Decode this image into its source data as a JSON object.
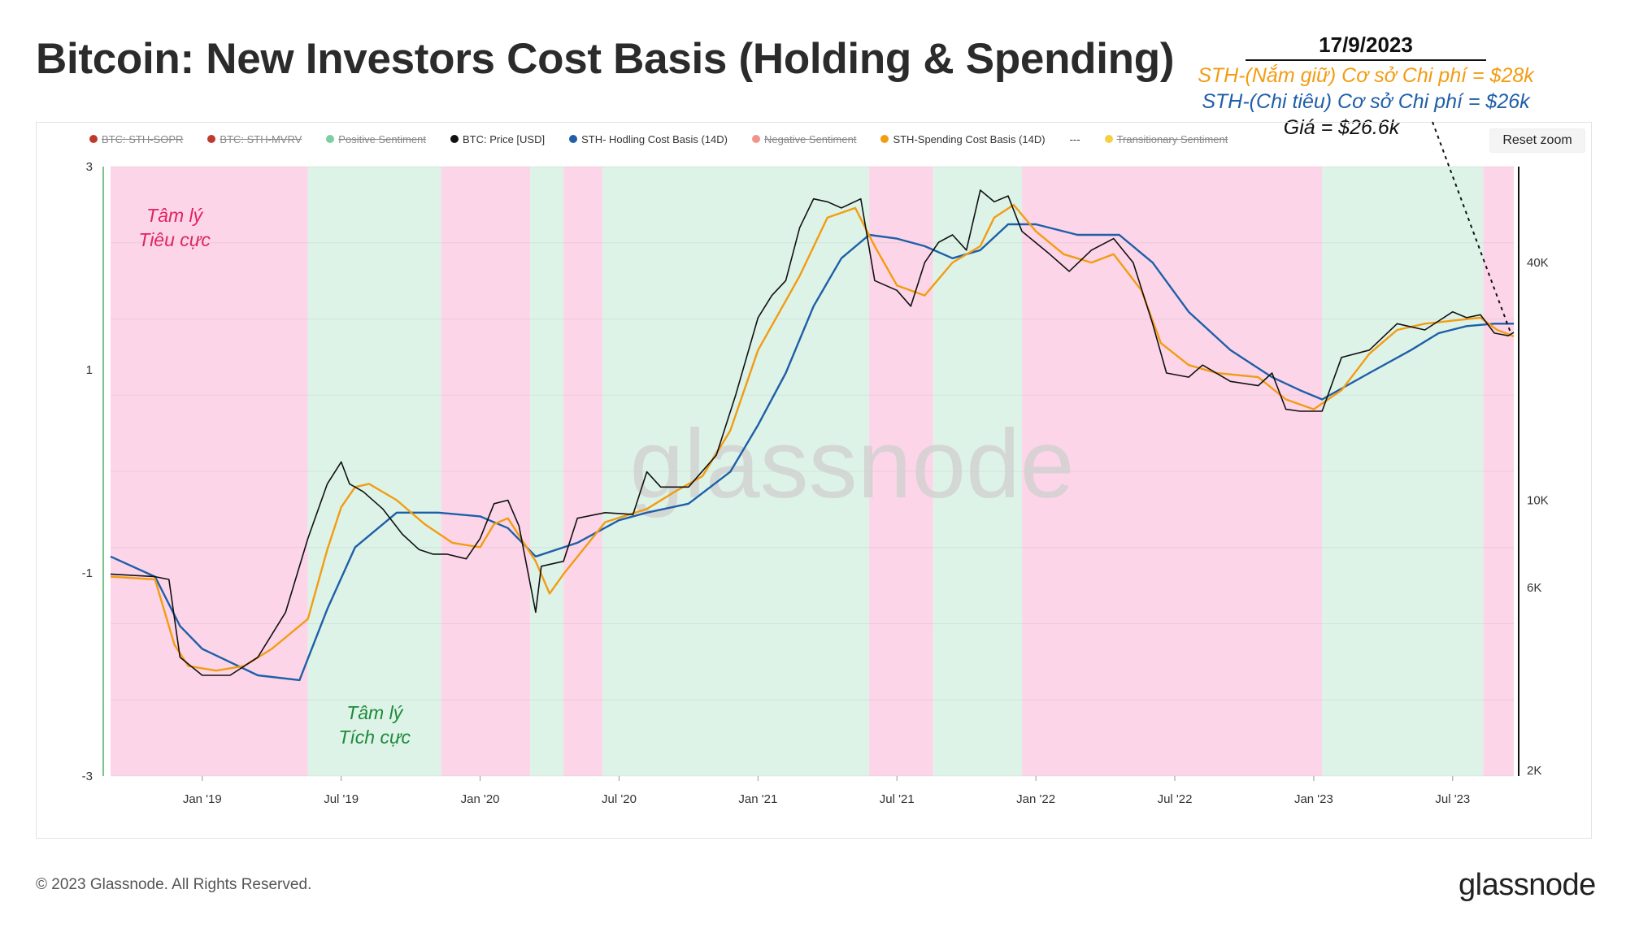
{
  "header": {
    "title": "Bitcoin: New Investors Cost Basis (Holding & Spending)"
  },
  "annotation": {
    "date": "17/9/2023",
    "holding": "STH-(Nắm giữ) Cơ sở Chi phí = $28k",
    "spending": "STH-(Chi tiêu) Cơ sở Chi phí = $26k",
    "price": "Giá = $26.6k"
  },
  "legend": [
    {
      "label": "BTC: STH-SOPR",
      "color": "#c0392b",
      "enabled": false
    },
    {
      "label": "BTC: STH-MVRV",
      "color": "#c0392b",
      "enabled": false
    },
    {
      "label": "Positive Sentiment",
      "color": "#7dcea0",
      "enabled": false
    },
    {
      "label": "BTC: Price [USD]",
      "color": "#111111",
      "enabled": true
    },
    {
      "label": "STH- Hodling Cost Basis (14D)",
      "color": "#1f5fa8",
      "enabled": true
    },
    {
      "label": "Negative Sentiment",
      "color": "#f1948a",
      "enabled": false
    },
    {
      "label": "STH-Spending Cost Basis (14D)",
      "color": "#f39c12",
      "enabled": true
    },
    {
      "label": "---",
      "color": "",
      "enabled": true
    },
    {
      "label": "Transitionary Sentiment",
      "color": "#f4d03f",
      "enabled": false
    }
  ],
  "controls": {
    "reset_zoom": "Reset zoom"
  },
  "footer": {
    "copyright": "© 2023 Glassnode. All Rights Reserved.",
    "brand": "glassnode"
  },
  "watermark": "glassnode",
  "colors": {
    "price": "#111111",
    "holding": "#1f5fa8",
    "spending": "#f39c12",
    "negative_band": "#fcd6e8",
    "positive_band": "#ddf3e8",
    "left_axis_line": "#7cc48e"
  },
  "chart_data": {
    "type": "line",
    "title": "Bitcoin: New Investors Cost Basis (Holding & Spending)",
    "x_ticks": [
      "Jan '19",
      "Jul '19",
      "Jan '20",
      "Jul '20",
      "Jan '21",
      "Jul '21",
      "Jan '22",
      "Jul '22",
      "Jan '23",
      "Jul '23"
    ],
    "x_range": [
      "2018-09",
      "2023-09"
    ],
    "y_left_ticks": [
      "3",
      "1",
      "-1",
      "-3"
    ],
    "y_left_range": [
      -3,
      3
    ],
    "y_right_ticks": [
      "40K",
      "10K",
      "6K",
      "2K"
    ],
    "y_right_scale": "log",
    "y_right_range_usd": [
      2000,
      70000
    ],
    "sentiment_bands": [
      {
        "from": 2018.67,
        "to": 2019.38,
        "sentiment": "negative"
      },
      {
        "from": 2019.38,
        "to": 2019.86,
        "sentiment": "positive"
      },
      {
        "from": 2019.86,
        "to": 2020.18,
        "sentiment": "negative"
      },
      {
        "from": 2020.18,
        "to": 2020.3,
        "sentiment": "positive"
      },
      {
        "from": 2020.3,
        "to": 2020.44,
        "sentiment": "negative"
      },
      {
        "from": 2020.44,
        "to": 2021.4,
        "sentiment": "positive"
      },
      {
        "from": 2021.4,
        "to": 2021.63,
        "sentiment": "negative"
      },
      {
        "from": 2021.63,
        "to": 2021.95,
        "sentiment": "positive"
      },
      {
        "from": 2021.95,
        "to": 2023.03,
        "sentiment": "negative"
      },
      {
        "from": 2023.03,
        "to": 2023.61,
        "sentiment": "positive"
      },
      {
        "from": 2023.61,
        "to": 2023.72,
        "sentiment": "negative"
      }
    ],
    "band_labels": [
      {
        "text": "Tâm lý\nTiêu cực",
        "sentiment": "negative",
        "at": 2018.9
      },
      {
        "text": "Tâm lý\nTích cực",
        "sentiment": "positive",
        "at": 2019.62
      }
    ],
    "series": [
      {
        "name": "BTC: Price [USD]",
        "color": "#111111",
        "x": [
          2018.67,
          2018.83,
          2018.88,
          2018.92,
          2019.0,
          2019.1,
          2019.2,
          2019.3,
          2019.38,
          2019.45,
          2019.5,
          2019.53,
          2019.58,
          2019.65,
          2019.72,
          2019.78,
          2019.83,
          2019.88,
          2019.95,
          2020.0,
          2020.05,
          2020.1,
          2020.14,
          2020.2,
          2020.22,
          2020.3,
          2020.35,
          2020.45,
          2020.55,
          2020.6,
          2020.65,
          2020.75,
          2020.85,
          2020.92,
          2021.0,
          2021.05,
          2021.1,
          2021.15,
          2021.2,
          2021.25,
          2021.3,
          2021.37,
          2021.42,
          2021.5,
          2021.55,
          2021.6,
          2021.65,
          2021.7,
          2021.75,
          2021.8,
          2021.85,
          2021.9,
          2021.95,
          2022.05,
          2022.12,
          2022.2,
          2022.28,
          2022.35,
          2022.42,
          2022.47,
          2022.55,
          2022.6,
          2022.7,
          2022.8,
          2022.85,
          2022.9,
          2022.95,
          2023.03,
          2023.1,
          2023.2,
          2023.3,
          2023.4,
          2023.5,
          2023.55,
          2023.6,
          2023.65,
          2023.7,
          2023.72
        ],
        "y": [
          6500,
          6400,
          6300,
          4000,
          3600,
          3600,
          4000,
          5200,
          8000,
          11000,
          12500,
          11000,
          10500,
          9500,
          8200,
          7500,
          7300,
          7300,
          7100,
          8000,
          9800,
          10000,
          8600,
          5200,
          6800,
          7000,
          9000,
          9300,
          9200,
          11800,
          10800,
          10800,
          13000,
          18500,
          29000,
          33000,
          36000,
          49000,
          58000,
          57000,
          55000,
          58000,
          36000,
          34000,
          31000,
          40000,
          45000,
          47000,
          43000,
          61000,
          57000,
          59000,
          48000,
          42000,
          38000,
          43000,
          46000,
          40000,
          28000,
          21000,
          20500,
          22000,
          20000,
          19500,
          21000,
          17000,
          16800,
          16800,
          23000,
          24000,
          28000,
          27000,
          30000,
          29000,
          29500,
          26500,
          26100,
          26600
        ]
      },
      {
        "name": "STH- Hodling Cost Basis (14D)",
        "color": "#1f5fa8",
        "x": [
          2018.67,
          2018.83,
          2018.92,
          2019.0,
          2019.2,
          2019.35,
          2019.45,
          2019.55,
          2019.7,
          2019.85,
          2020.0,
          2020.1,
          2020.2,
          2020.35,
          2020.5,
          2020.6,
          2020.75,
          2020.9,
          2021.0,
          2021.1,
          2021.2,
          2021.3,
          2021.4,
          2021.5,
          2021.6,
          2021.7,
          2021.8,
          2021.9,
          2022.0,
          2022.15,
          2022.3,
          2022.42,
          2022.55,
          2022.7,
          2022.85,
          2022.95,
          2023.03,
          2023.2,
          2023.35,
          2023.45,
          2023.55,
          2023.65,
          2023.72
        ],
        "y": [
          7200,
          6400,
          4800,
          4200,
          3600,
          3500,
          5300,
          7600,
          9300,
          9300,
          9100,
          8500,
          7200,
          7800,
          8900,
          9300,
          9800,
          11800,
          15500,
          21000,
          31000,
          41000,
          47000,
          46000,
          44000,
          41000,
          43000,
          50000,
          50000,
          47000,
          47000,
          40000,
          30000,
          24000,
          20500,
          19000,
          18000,
          21000,
          24000,
          26500,
          27600,
          28000,
          28000
        ]
      },
      {
        "name": "STH-Spending Cost Basis (14D)",
        "color": "#f39c12",
        "x": [
          2018.67,
          2018.83,
          2018.9,
          2018.95,
          2019.05,
          2019.15,
          2019.25,
          2019.38,
          2019.45,
          2019.5,
          2019.55,
          2019.6,
          2019.7,
          2019.8,
          2019.9,
          2020.0,
          2020.05,
          2020.1,
          2020.2,
          2020.25,
          2020.3,
          2020.45,
          2020.6,
          2020.7,
          2020.8,
          2020.9,
          2021.0,
          2021.1,
          2021.15,
          2021.25,
          2021.35,
          2021.42,
          2021.5,
          2021.6,
          2021.7,
          2021.8,
          2021.85,
          2021.92,
          2022.0,
          2022.1,
          2022.2,
          2022.28,
          2022.38,
          2022.45,
          2022.55,
          2022.65,
          2022.8,
          2022.9,
          2023.0,
          2023.1,
          2023.2,
          2023.3,
          2023.4,
          2023.5,
          2023.6,
          2023.66,
          2023.72
        ],
        "y": [
          6400,
          6300,
          4300,
          3800,
          3700,
          3800,
          4200,
          5000,
          7500,
          9600,
          10800,
          11000,
          10000,
          8700,
          7800,
          7600,
          8700,
          9000,
          7000,
          5800,
          6500,
          8800,
          9500,
          10500,
          11500,
          15000,
          24000,
          32000,
          37000,
          52000,
          55000,
          44000,
          35000,
          33000,
          40000,
          44000,
          52000,
          56000,
          48000,
          42000,
          40000,
          42000,
          34000,
          25000,
          22000,
          21000,
          20500,
          18000,
          17000,
          19000,
          23500,
          27000,
          28000,
          28500,
          29000,
          27000,
          26000
        ]
      }
    ]
  }
}
